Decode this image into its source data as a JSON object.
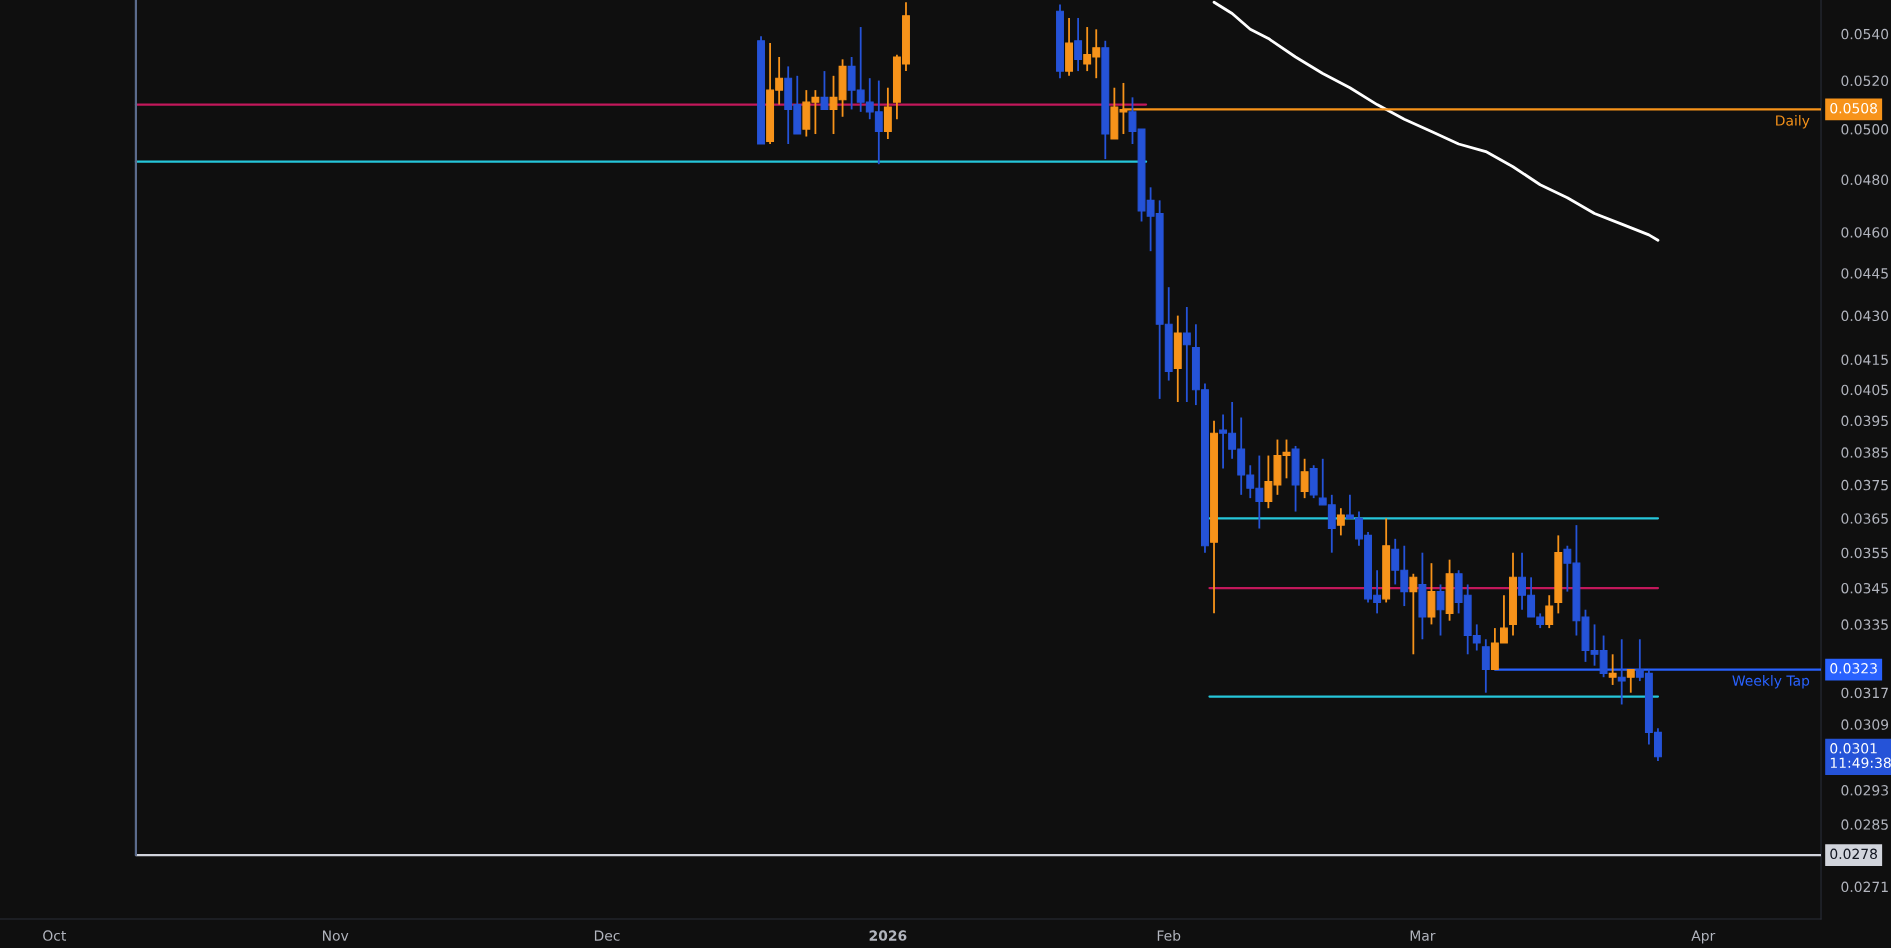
{
  "chart_data": {
    "type": "candlestick",
    "x": [
      "2025-12-18",
      "2025-12-19",
      "2025-12-20",
      "2025-12-21",
      "2025-12-22",
      "2025-12-23",
      "2025-12-24",
      "2025-12-25",
      "2025-12-26",
      "2025-12-27",
      "2025-12-28",
      "2025-12-29",
      "2025-12-30",
      "2025-12-31",
      "2026-01-01",
      "2026-01-02",
      "2026-01-03",
      "2026-01-20",
      "2026-01-21",
      "2026-01-22",
      "2026-01-23",
      "2026-01-24",
      "2026-01-25",
      "2026-01-26",
      "2026-01-27",
      "2026-01-28",
      "2026-01-29",
      "2026-01-30",
      "2026-01-31",
      "2026-02-01",
      "2026-02-02",
      "2026-02-03",
      "2026-02-04",
      "2026-02-05",
      "2026-02-06",
      "2026-02-07",
      "2026-02-08",
      "2026-02-09",
      "2026-02-10",
      "2026-02-11",
      "2026-02-12",
      "2026-02-13",
      "2026-02-14",
      "2026-02-15",
      "2026-02-16",
      "2026-02-17",
      "2026-02-18",
      "2026-02-19",
      "2026-02-20",
      "2026-02-21",
      "2026-02-22",
      "2026-02-23",
      "2026-02-24",
      "2026-02-25",
      "2026-02-26",
      "2026-02-27",
      "2026-02-28",
      "2026-03-01",
      "2026-03-02",
      "2026-03-03",
      "2026-03-04",
      "2026-03-05",
      "2026-03-06",
      "2026-03-07",
      "2026-03-08",
      "2026-03-09",
      "2026-03-10",
      "2026-03-11",
      "2026-03-12",
      "2026-03-13",
      "2026-03-14",
      "2026-03-15",
      "2026-03-16",
      "2026-03-17",
      "2026-03-18",
      "2026-03-19",
      "2026-03-20",
      "2026-03-21",
      "2026-03-22",
      "2026-03-23",
      "2026-03-24",
      "2026-03-25",
      "2026-03-26",
      "2026-03-27"
    ],
    "ohlc": [
      [
        0.0537,
        0.0539,
        0.0494,
        0.0494
      ],
      [
        0.0495,
        0.0536,
        0.0494,
        0.0516
      ],
      [
        0.0516,
        0.053,
        0.051,
        0.0521
      ],
      [
        0.0521,
        0.0526,
        0.0494,
        0.0508
      ],
      [
        0.051,
        0.0522,
        0.0498,
        0.0498
      ],
      [
        0.05,
        0.0516,
        0.0497,
        0.0511
      ],
      [
        0.0511,
        0.0516,
        0.0498,
        0.0513
      ],
      [
        0.0513,
        0.0524,
        0.0508,
        0.0508
      ],
      [
        0.0508,
        0.0522,
        0.0498,
        0.0513
      ],
      [
        0.0512,
        0.0529,
        0.0505,
        0.0526
      ],
      [
        0.0526,
        0.053,
        0.0508,
        0.0516
      ],
      [
        0.0516,
        0.0543,
        0.0507,
        0.0511
      ],
      [
        0.0511,
        0.0521,
        0.0504,
        0.0507
      ],
      [
        0.0507,
        0.052,
        0.0486,
        0.0499
      ],
      [
        0.0499,
        0.0517,
        0.0496,
        0.0509
      ],
      [
        0.0511,
        0.0531,
        0.0504,
        0.053
      ],
      [
        0.0527,
        0.0554,
        0.0524,
        0.0548
      ],
      [
        0.055,
        0.0553,
        0.0521,
        0.0524
      ],
      [
        0.0524,
        0.0547,
        0.0522,
        0.0536
      ],
      [
        0.0537,
        0.0547,
        0.0524,
        0.0529
      ],
      [
        0.0527,
        0.0543,
        0.0524,
        0.0531
      ],
      [
        0.053,
        0.0542,
        0.0521,
        0.0534
      ],
      [
        0.0534,
        0.0537,
        0.0488,
        0.0498
      ],
      [
        0.0496,
        0.0517,
        0.0496,
        0.0509
      ],
      [
        0.0507,
        0.0519,
        0.0498,
        0.0508
      ],
      [
        0.0507,
        0.0513,
        0.0494,
        0.0499
      ],
      [
        0.05,
        0.05,
        0.0464,
        0.0468
      ],
      [
        0.0472,
        0.0477,
        0.0453,
        0.0466
      ],
      [
        0.0467,
        0.0472,
        0.0402,
        0.0427
      ],
      [
        0.0427,
        0.044,
        0.0408,
        0.0411
      ],
      [
        0.0412,
        0.043,
        0.0401,
        0.0424
      ],
      [
        0.0424,
        0.0433,
        0.0401,
        0.042
      ],
      [
        0.0419,
        0.0427,
        0.04,
        0.0405
      ],
      [
        0.0405,
        0.0407,
        0.0355,
        0.0357
      ],
      [
        0.0358,
        0.0395,
        0.0338,
        0.0391
      ],
      [
        0.0392,
        0.0397,
        0.038,
        0.0391
      ],
      [
        0.0391,
        0.0401,
        0.0383,
        0.0386
      ],
      [
        0.0386,
        0.0396,
        0.0372,
        0.0378
      ],
      [
        0.0378,
        0.0381,
        0.0371,
        0.0374
      ],
      [
        0.0374,
        0.0384,
        0.0362,
        0.037
      ],
      [
        0.037,
        0.0384,
        0.0368,
        0.0376
      ],
      [
        0.0375,
        0.0389,
        0.0372,
        0.0384
      ],
      [
        0.0384,
        0.0389,
        0.0377,
        0.0385
      ],
      [
        0.0386,
        0.0387,
        0.0367,
        0.0375
      ],
      [
        0.0373,
        0.0383,
        0.0371,
        0.0379
      ],
      [
        0.038,
        0.0381,
        0.0371,
        0.0372
      ],
      [
        0.0371,
        0.0383,
        0.0369,
        0.0369
      ],
      [
        0.0369,
        0.0372,
        0.0355,
        0.0362
      ],
      [
        0.0363,
        0.0368,
        0.036,
        0.0366
      ],
      [
        0.0366,
        0.0372,
        0.0365,
        0.0365
      ],
      [
        0.0365,
        0.0367,
        0.0357,
        0.0359
      ],
      [
        0.036,
        0.0361,
        0.0341,
        0.0342
      ],
      [
        0.0343,
        0.035,
        0.0338,
        0.0341
      ],
      [
        0.0342,
        0.0365,
        0.0341,
        0.0357
      ],
      [
        0.0356,
        0.0359,
        0.0346,
        0.035
      ],
      [
        0.035,
        0.0357,
        0.034,
        0.0344
      ],
      [
        0.0344,
        0.0349,
        0.0327,
        0.0348
      ],
      [
        0.0346,
        0.0355,
        0.0331,
        0.0337
      ],
      [
        0.0337,
        0.0352,
        0.0335,
        0.0344
      ],
      [
        0.0344,
        0.0346,
        0.0332,
        0.0339
      ],
      [
        0.0338,
        0.0353,
        0.0336,
        0.0349
      ],
      [
        0.0349,
        0.035,
        0.0338,
        0.0341
      ],
      [
        0.0343,
        0.0346,
        0.0327,
        0.0332
      ],
      [
        0.0332,
        0.0335,
        0.0328,
        0.033
      ],
      [
        0.0329,
        0.0331,
        0.0317,
        0.0323
      ],
      [
        0.0323,
        0.0334,
        0.0323,
        0.033
      ],
      [
        0.033,
        0.0343,
        0.033,
        0.0334
      ],
      [
        0.0335,
        0.0355,
        0.0332,
        0.0348
      ],
      [
        0.0348,
        0.0355,
        0.0339,
        0.0343
      ],
      [
        0.0343,
        0.0348,
        0.0337,
        0.0337
      ],
      [
        0.0337,
        0.0338,
        0.0334,
        0.0335
      ],
      [
        0.0335,
        0.0343,
        0.0334,
        0.034
      ],
      [
        0.0341,
        0.036,
        0.0338,
        0.0355
      ],
      [
        0.0356,
        0.0357,
        0.0344,
        0.0352
      ],
      [
        0.0352,
        0.0363,
        0.0332,
        0.0336
      ],
      [
        0.0337,
        0.0339,
        0.0325,
        0.0328
      ],
      [
        0.0328,
        0.0335,
        0.0324,
        0.0327
      ],
      [
        0.0328,
        0.0332,
        0.0321,
        0.0322
      ],
      [
        0.0321,
        0.0327,
        0.0319,
        0.0322
      ],
      [
        0.0321,
        0.0331,
        0.0314,
        0.032
      ],
      [
        0.0321,
        0.0323,
        0.0317,
        0.0323
      ],
      [
        0.0323,
        0.0331,
        0.032,
        0.0321
      ],
      [
        0.0322,
        0.0323,
        0.0304,
        0.0307
      ],
      [
        0.0307,
        0.0308,
        0.03,
        0.0301
      ]
    ],
    "colors": [
      "#2553d8",
      "#f7931a",
      "#f7931a",
      "#2553d8",
      "#2553d8",
      "#f7931a",
      "#f7931a",
      "#2553d8",
      "#f7931a",
      "#f7931a",
      "#2553d8",
      "#2553d8",
      "#2553d8",
      "#2553d8",
      "#f7931a",
      "#f7931a",
      "#f7931a",
      "#2553d8",
      "#f7931a",
      "#2553d8",
      "#f7931a",
      "#f7931a",
      "#2553d8",
      "#f7931a",
      "#f7931a",
      "#2553d8",
      "#2553d8",
      "#2553d8",
      "#2553d8",
      "#2553d8",
      "#f7931a",
      "#2553d8",
      "#2553d8",
      "#2553d8",
      "#f7931a",
      "#2553d8",
      "#2553d8",
      "#2553d8",
      "#2553d8",
      "#2553d8",
      "#f7931a",
      "#f7931a",
      "#f7931a",
      "#2553d8",
      "#f7931a",
      "#2553d8",
      "#2553d8",
      "#2553d8",
      "#f7931a",
      "#2553d8",
      "#2553d8",
      "#2553d8",
      "#2553d8",
      "#f7931a",
      "#2553d8",
      "#2553d8",
      "#f7931a",
      "#2553d8",
      "#f7931a",
      "#2553d8",
      "#f7931a",
      "#2553d8",
      "#2553d8",
      "#2553d8",
      "#2553d8",
      "#f7931a",
      "#f7931a",
      "#f7931a",
      "#2553d8",
      "#2553d8",
      "#2553d8",
      "#f7931a",
      "#f7931a",
      "#2553d8",
      "#2553d8",
      "#2553d8",
      "#2553d8",
      "#2553d8",
      "#f7931a",
      "#2553d8",
      "#f7931a",
      "#2553d8",
      "#2553d8",
      "#2553d8"
    ],
    "series": [
      {
        "type": "line",
        "color": "#ffffff",
        "x": [
          "2026-02-06",
          "2026-02-08",
          "2026-02-10",
          "2026-02-12",
          "2026-02-15",
          "2026-02-18",
          "2026-02-21",
          "2026-02-24",
          "2026-02-27",
          "2026-03-02",
          "2026-03-05",
          "2026-03-08",
          "2026-03-11",
          "2026-03-14",
          "2026-03-17",
          "2026-03-20",
          "2026-03-23",
          "2026-03-26",
          "2026-03-27"
        ],
        "values": [
          0.0554,
          0.0549,
          0.0542,
          0.0538,
          0.053,
          0.0523,
          0.0517,
          0.051,
          0.0504,
          0.0499,
          0.0494,
          0.0491,
          0.0485,
          0.0478,
          0.0473,
          0.0467,
          0.0463,
          0.0459,
          0.0457
        ]
      },
      {
        "type": "line",
        "color": "#c2185b",
        "x": [
          "2025-10-10",
          "2026-01-29T12:00"
        ],
        "values": [
          0.051,
          0.051
        ]
      },
      {
        "type": "line",
        "color": "#26c6da",
        "x": [
          "2025-10-10",
          "2026-01-29T12:00"
        ],
        "values": [
          0.0487,
          0.0487
        ]
      },
      {
        "type": "line",
        "name": "Daily",
        "color": "#f7931a",
        "x": [
          "2026-01-27",
          "2026-04-14"
        ],
        "values": [
          0.0508,
          0.0508
        ],
        "value_labels": [
          null,
          "0.0508"
        ]
      },
      {
        "type": "line",
        "color": "#c2185b",
        "x": [
          "2026-02-05T12:00",
          "2026-03-27"
        ],
        "values": [
          0.0345,
          0.0345
        ]
      },
      {
        "type": "line",
        "color": "#26c6da",
        "x": [
          "2026-02-05T12:00",
          "2026-03-27"
        ],
        "values": [
          0.0365,
          0.0365
        ]
      },
      {
        "type": "line",
        "color": "#26c6da",
        "x": [
          "2026-02-05T12:00",
          "2026-03-27"
        ],
        "values": [
          0.0316,
          0.0316
        ]
      },
      {
        "type": "line",
        "name": "Weekly Tap",
        "color": "#2962ff",
        "x": [
          "2026-03-09",
          "2026-04-14"
        ],
        "values": [
          0.0323,
          0.0323
        ],
        "value_labels": [
          null,
          "0.0323"
        ]
      },
      {
        "type": "line",
        "color": "#d1d4dc",
        "x": [
          "2025-10-10",
          "2026-04-14"
        ],
        "values": [
          0.0278,
          0.0278
        ],
        "value_labels": [
          null,
          "0.0278"
        ]
      },
      {
        "type": "line",
        "color": "#5b6b8c",
        "x": [
          "2025-10-10",
          "2025-10-10"
        ],
        "values": [
          0.0278,
          0.0555
        ]
      }
    ],
    "value_labels": [
      null,
      null,
      null,
      null,
      null,
      null,
      null,
      null,
      null,
      null,
      null,
      null,
      null,
      null,
      null,
      null,
      null,
      null,
      null,
      null,
      null,
      null,
      null,
      null,
      null,
      null,
      null,
      null,
      null,
      null,
      null,
      null,
      null,
      null,
      null,
      null,
      null,
      null,
      null,
      null,
      null,
      null,
      null,
      null,
      null,
      null,
      null,
      null,
      null,
      null,
      null,
      null,
      null,
      null,
      null,
      null,
      null,
      null,
      null,
      null,
      null,
      null,
      null,
      null,
      null,
      null,
      null,
      null,
      null,
      null,
      null,
      null,
      null,
      null,
      null,
      null,
      null,
      null,
      null,
      null,
      null,
      null,
      null,
      "0.0301\n11:49:38"
    ],
    "log": "y",
    "xlim": [
      "2025-09-25",
      "2026-04-14"
    ],
    "xticks": [
      {
        "value": "2025-10-01",
        "label": "Oct"
      },
      {
        "value": "2025-11-01",
        "label": "Nov"
      },
      {
        "value": "2025-12-01",
        "label": "Dec"
      },
      {
        "value": "2026-01-01",
        "label": "2026"
      },
      {
        "value": "2026-02-01",
        "label": "Feb"
      },
      {
        "value": "2026-03-01",
        "label": "Mar"
      },
      {
        "value": "2026-04-01",
        "label": "Apr"
      }
    ],
    "ylim": [
      0.0264,
      0.0555
    ],
    "yticks": [
      {
        "value": 0.054,
        "label": "0.0540"
      },
      {
        "value": 0.052,
        "label": "0.0520"
      },
      {
        "value": 0.05,
        "label": "0.0500"
      },
      {
        "value": 0.048,
        "label": "0.0480"
      },
      {
        "value": 0.046,
        "label": "0.0460"
      },
      {
        "value": 0.0445,
        "label": "0.0445"
      },
      {
        "value": 0.043,
        "label": "0.0430"
      },
      {
        "value": 0.0415,
        "label": "0.0415"
      },
      {
        "value": 0.0405,
        "label": "0.0405"
      },
      {
        "value": 0.0395,
        "label": "0.0395"
      },
      {
        "value": 0.0385,
        "label": "0.0385"
      },
      {
        "value": 0.0375,
        "label": "0.0375"
      },
      {
        "value": 0.0365,
        "label": "0.0365"
      },
      {
        "value": 0.0355,
        "label": "0.0355"
      },
      {
        "value": 0.0345,
        "label": "0.0345"
      },
      {
        "value": 0.0335,
        "label": "0.0335"
      },
      {
        "value": 0.0317,
        "label": "0.0317"
      },
      {
        "value": 0.0309,
        "label": "0.0309"
      },
      {
        "value": 0.0293,
        "label": "0.0293"
      },
      {
        "value": 0.0285,
        "label": "0.0285"
      },
      {
        "value": 0.0271,
        "label": "0.0271"
      }
    ],
    "grid": false
  }
}
